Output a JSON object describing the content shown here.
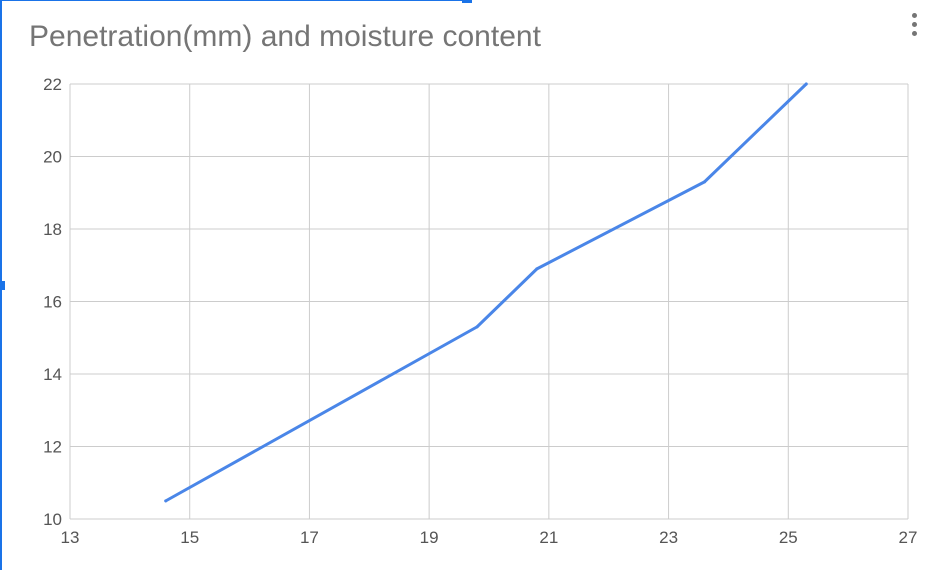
{
  "header": {
    "menu_icon": "more-vert-icon"
  },
  "colors": {
    "series": "#4a86e8",
    "grid": "#cccccc",
    "title": "#757575"
  },
  "chart_data": {
    "type": "line",
    "title": "Penetration(mm) and moisture content",
    "xlabel": "",
    "ylabel": "",
    "xlim": [
      13,
      27
    ],
    "ylim": [
      10,
      22
    ],
    "x_ticks": [
      13,
      15,
      17,
      19,
      21,
      23,
      25,
      27
    ],
    "y_ticks": [
      10,
      12,
      14,
      16,
      18,
      20,
      22
    ],
    "grid": true,
    "legend": "none",
    "series": [
      {
        "x": [
          14.6,
          19.8,
          20.8,
          23.6,
          25.3
        ],
        "y": [
          10.5,
          15.3,
          16.9,
          19.3,
          22.0
        ]
      }
    ]
  }
}
